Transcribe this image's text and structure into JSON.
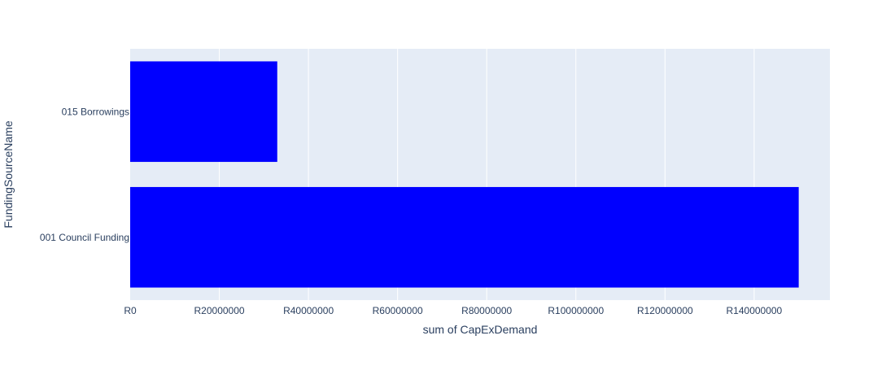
{
  "chart_data": {
    "type": "bar",
    "orientation": "horizontal",
    "categories": [
      "001 Council Funding",
      "015 Borrowings"
    ],
    "values": [
      150000000,
      33000000
    ],
    "title": "",
    "xlabel": "sum of CapExDemand",
    "ylabel": "FundingSourceName",
    "xlim": [
      0,
      157000000
    ],
    "xticks": [
      0,
      20000000,
      40000000,
      60000000,
      80000000,
      100000000,
      120000000,
      140000000
    ],
    "xtick_labels": [
      "R0",
      "R20000000",
      "R40000000",
      "R60000000",
      "R80000000",
      "R100000000",
      "R120000000",
      "R140000000"
    ],
    "grid": true,
    "legend": "none",
    "colors": {
      "bar": "#0000ff",
      "plot_background": "#e5ecf6",
      "gridline": "#ffffff",
      "text": "#2a3f5f"
    }
  }
}
